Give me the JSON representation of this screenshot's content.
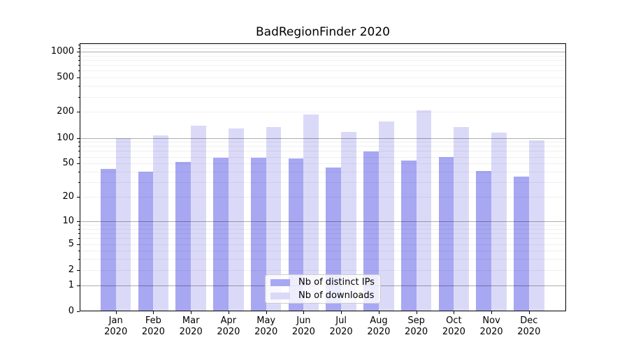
{
  "title": "BadRegionFinder 2020",
  "chart_data": {
    "type": "bar",
    "title": "BadRegionFinder 2020",
    "yscale": "log10(1+y)",
    "ylim": [
      0,
      1250
    ],
    "grid": "on",
    "legend_position": "inside bottom-center",
    "categories": [
      "Jan 2020",
      "Feb 2020",
      "Mar 2020",
      "Apr 2020",
      "May 2020",
      "Jun 2020",
      "Jul 2020",
      "Aug 2020",
      "Sep 2020",
      "Oct 2020",
      "Nov 2020",
      "Dec 2020"
    ],
    "x_tick_months": [
      "Jan",
      "Feb",
      "Mar",
      "Apr",
      "May",
      "Jun",
      "Jul",
      "Aug",
      "Sep",
      "Oct",
      "Nov",
      "Dec"
    ],
    "x_tick_year": "2020",
    "y_ticks": [
      0,
      1,
      2,
      5,
      10,
      20,
      50,
      100,
      200,
      500,
      1000
    ],
    "y_tick_labels": [
      "0",
      "1",
      "2",
      "5",
      "10",
      "20",
      "50",
      "100",
      "200",
      "500",
      "1000"
    ],
    "y_major_grid_values": [
      1,
      10,
      100,
      1000
    ],
    "y_minor_grid_values": [
      2,
      3,
      4,
      5,
      6,
      7,
      8,
      9,
      20,
      30,
      40,
      50,
      60,
      70,
      80,
      90,
      200,
      300,
      400,
      500,
      600,
      700,
      800,
      900,
      1100,
      1200
    ],
    "series": [
      {
        "name": "Nb of distinct IPs",
        "color": "#a7a7f2",
        "values": [
          43,
          40,
          52,
          59,
          59,
          57,
          45,
          69,
          54,
          60,
          41,
          35
        ]
      },
      {
        "name": "Nb of downloads",
        "color": "#dadaf8",
        "values": [
          100,
          106,
          139,
          128,
          134,
          186,
          117,
          154,
          210,
          133,
          115,
          93
        ]
      }
    ]
  },
  "colors": {
    "bar_ips": "#a7a7f2",
    "bar_downloads": "#dadaf8",
    "grid_major": "rgba(0,0,0,0.32)",
    "grid_minor": "rgba(0,0,0,0.06)",
    "axis": "#000000",
    "legend_border": "#cccccc",
    "legend_background": "rgba(255,255,255,0.8)"
  }
}
